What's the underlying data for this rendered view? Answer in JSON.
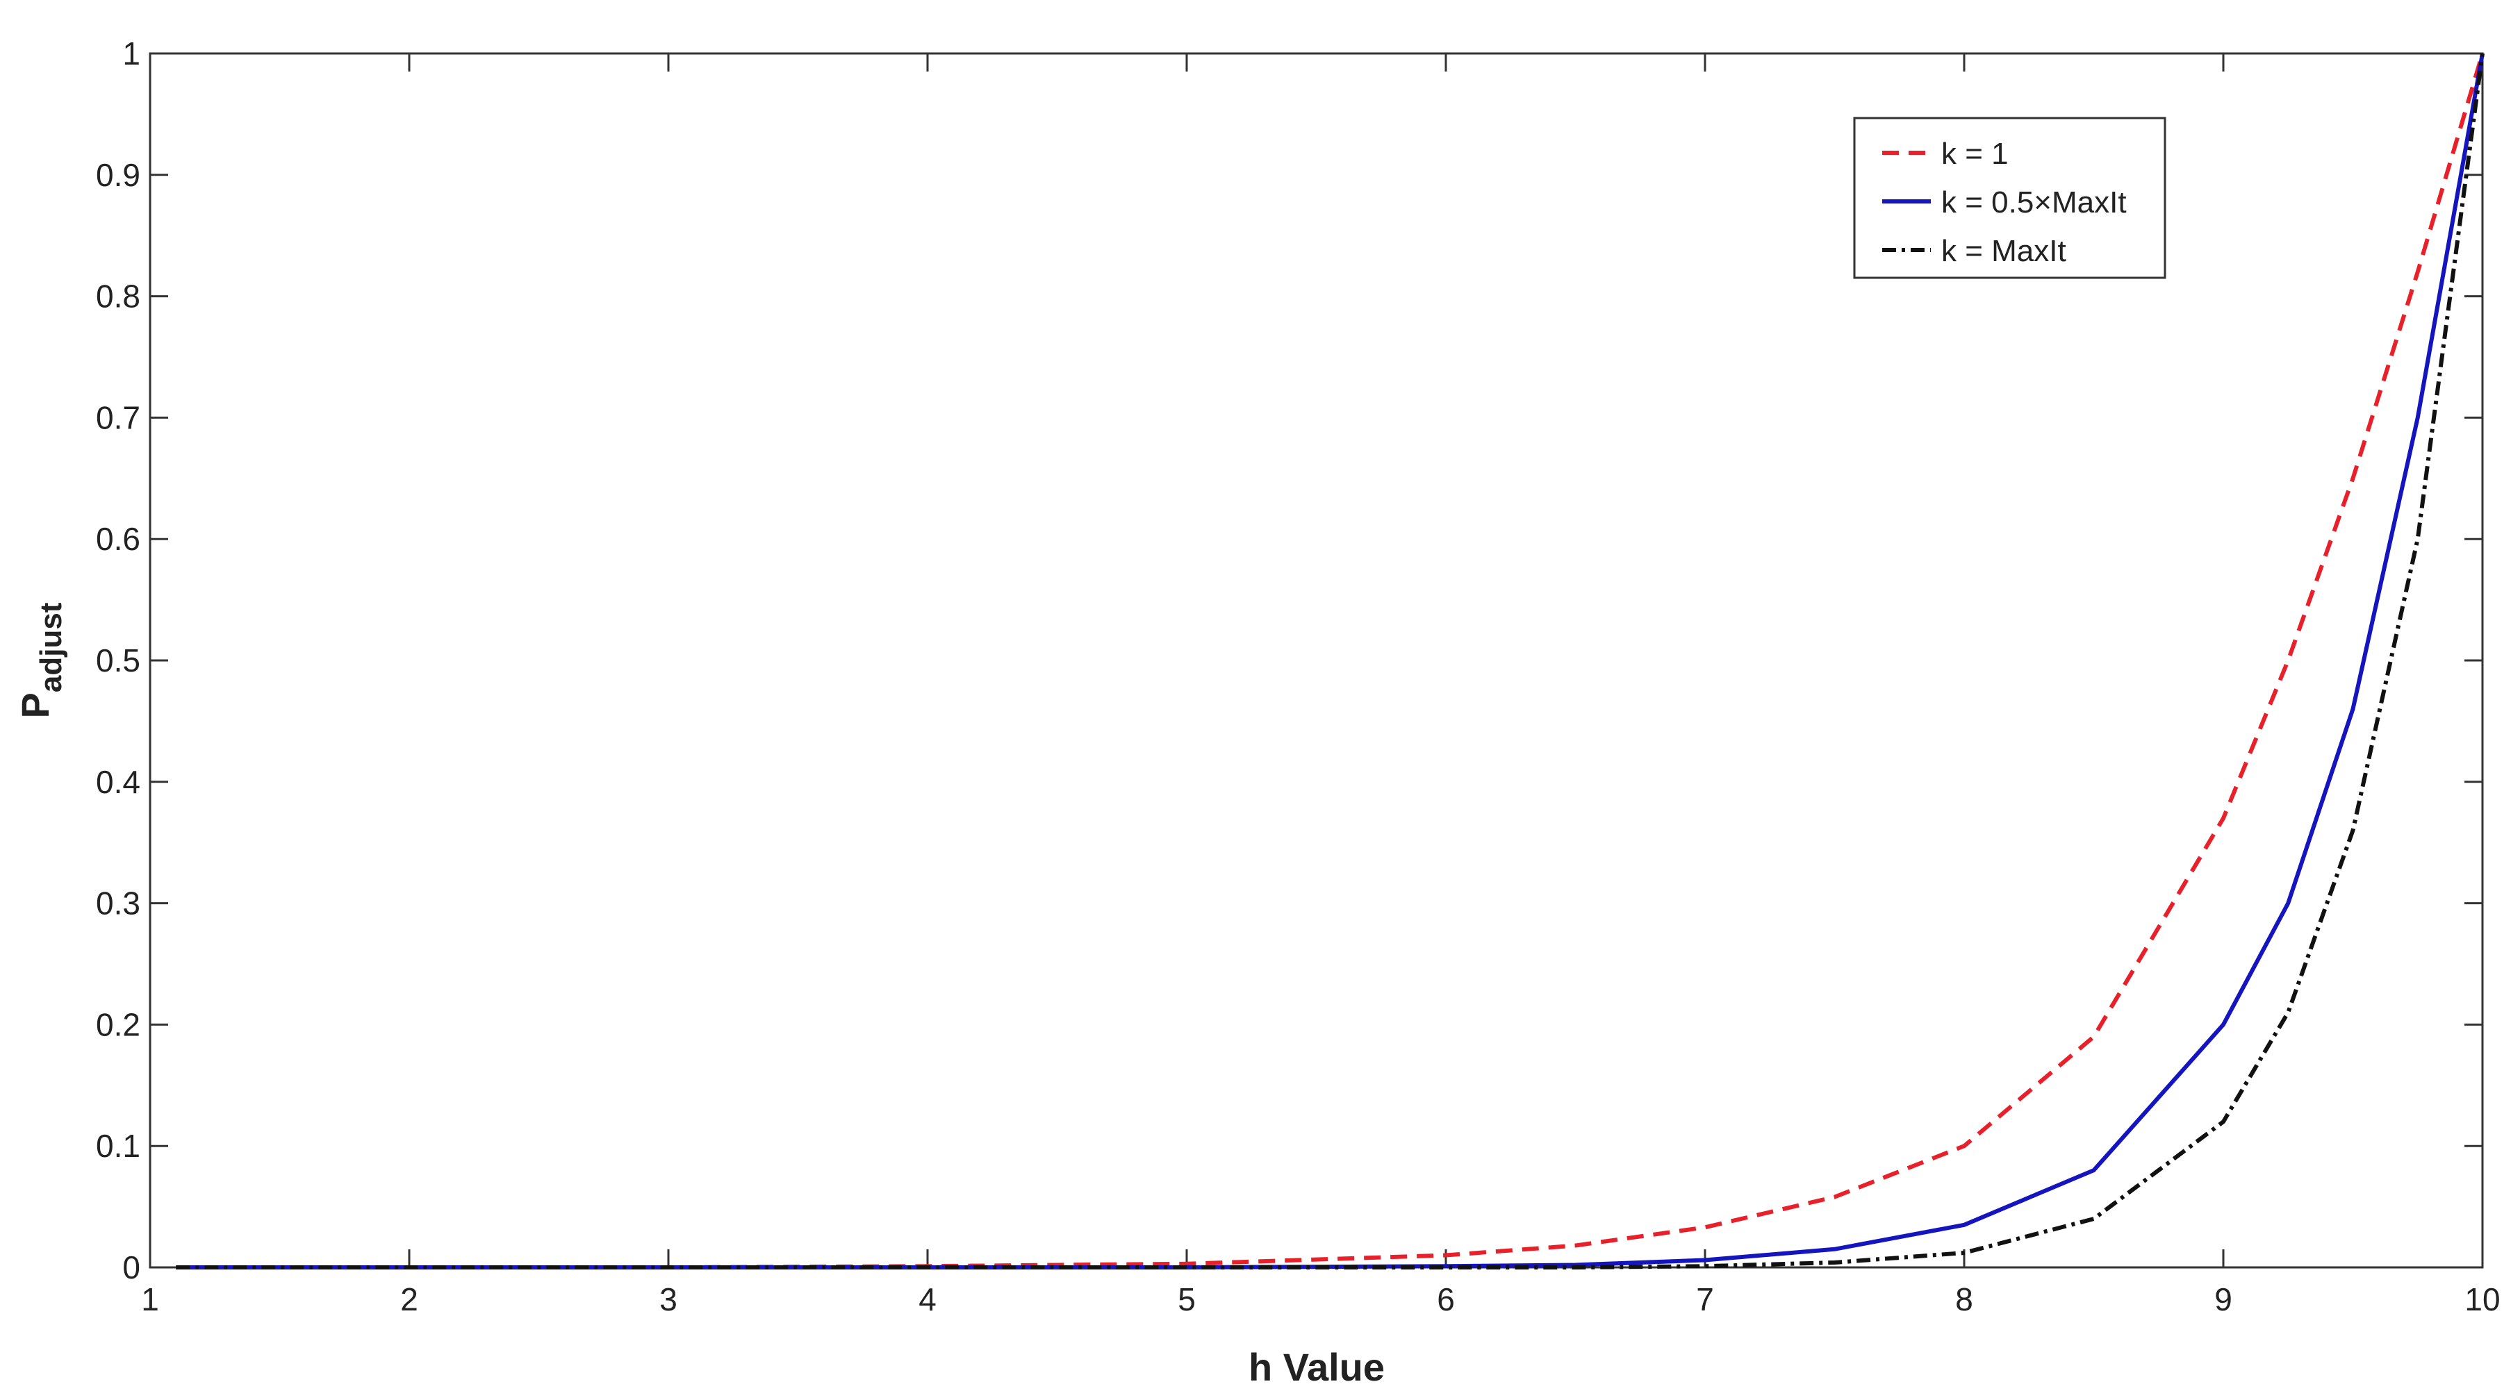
{
  "chart_data": {
    "type": "line",
    "x_label": "h Value",
    "y_label": "P",
    "y_label_sub": "adjust",
    "x": [
      1.1,
      2,
      3,
      4,
      5,
      6,
      6.5,
      7,
      7.5,
      8,
      8.5,
      9,
      9.25,
      9.5,
      9.75,
      10
    ],
    "series": [
      {
        "name": "k = 1",
        "color": "#e8202a",
        "dash": "dashed",
        "values": [
          0,
          0,
          0,
          0.001,
          0.003,
          0.01,
          0.018,
          0.033,
          0.058,
          0.1,
          0.19,
          0.37,
          0.5,
          0.65,
          0.82,
          1
        ]
      },
      {
        "name": "k = 0.5×MaxIt",
        "color": "#1515c0",
        "dash": "solid",
        "values": [
          0,
          0,
          0,
          0,
          0,
          0.001,
          0.002,
          0.006,
          0.015,
          0.035,
          0.08,
          0.2,
          0.3,
          0.46,
          0.7,
          1
        ]
      },
      {
        "name": "k = MaxIt",
        "color": "#111111",
        "dash": "dashdot",
        "values": [
          0,
          0,
          0,
          0,
          0,
          0,
          0,
          0.001,
          0.004,
          0.012,
          0.04,
          0.12,
          0.21,
          0.36,
          0.6,
          1
        ]
      }
    ],
    "xlim": [
      1,
      10
    ],
    "xticks": [
      1,
      2,
      3,
      4,
      5,
      6,
      7,
      8,
      9,
      10
    ],
    "ylim": [
      0,
      1
    ],
    "yticks": [
      0,
      0.1,
      0.2,
      0.3,
      0.4,
      0.5,
      0.6,
      0.7,
      0.8,
      0.9,
      1
    ],
    "grid": false,
    "legend": "upper right"
  }
}
